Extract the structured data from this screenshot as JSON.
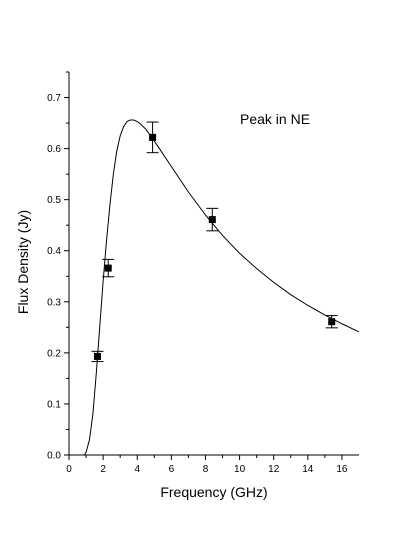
{
  "chart_data": {
    "type": "scatter",
    "title": "",
    "xlabel": "Frequency (GHz)",
    "ylabel": "Flux Density (Jy)",
    "xlim": [
      0,
      17
    ],
    "ylim": [
      0.0,
      0.75
    ],
    "x_ticks": [
      0,
      2,
      4,
      6,
      8,
      10,
      12,
      14,
      16
    ],
    "x_tick_labels": [
      "0",
      "2",
      "4",
      "6",
      "8",
      "10",
      "12",
      "14",
      "16"
    ],
    "y_ticks": [
      0.0,
      0.1,
      0.2,
      0.3,
      0.4,
      0.5,
      0.6,
      0.7
    ],
    "y_tick_labels": [
      "0.0",
      "0.1",
      "0.2",
      "0.3",
      "0.4",
      "0.5",
      "0.6",
      "0.7"
    ],
    "grid": false,
    "annotation": "Peak in NE",
    "series": [
      {
        "type": "scatter",
        "marker": "square",
        "points": [
          {
            "x": 1.67,
            "y": 0.193,
            "err": 0.01
          },
          {
            "x": 2.3,
            "y": 0.366,
            "err": 0.017
          },
          {
            "x": 4.9,
            "y": 0.622,
            "err": 0.03
          },
          {
            "x": 8.4,
            "y": 0.461,
            "err": 0.022
          },
          {
            "x": 15.4,
            "y": 0.261,
            "err": 0.012
          }
        ]
      },
      {
        "type": "line",
        "x": [
          0.9,
          1.0,
          1.2,
          1.4,
          1.6,
          1.8,
          2.0,
          2.2,
          2.4,
          2.6,
          2.8,
          3.0,
          3.2,
          3.4,
          3.6,
          3.8,
          4.0,
          4.2,
          4.5,
          5.0,
          5.5,
          6.0,
          7.0,
          8.0,
          9.0,
          10.0,
          11.0,
          12.0,
          13.0,
          14.0,
          15.0,
          16.0,
          17.0
        ],
        "y": [
          0.0,
          0.005,
          0.03,
          0.08,
          0.16,
          0.25,
          0.34,
          0.42,
          0.49,
          0.55,
          0.595,
          0.625,
          0.643,
          0.653,
          0.656,
          0.656,
          0.653,
          0.648,
          0.638,
          0.615,
          0.59,
          0.565,
          0.515,
          0.47,
          0.43,
          0.395,
          0.365,
          0.338,
          0.314,
          0.293,
          0.274,
          0.257,
          0.241
        ]
      }
    ]
  }
}
